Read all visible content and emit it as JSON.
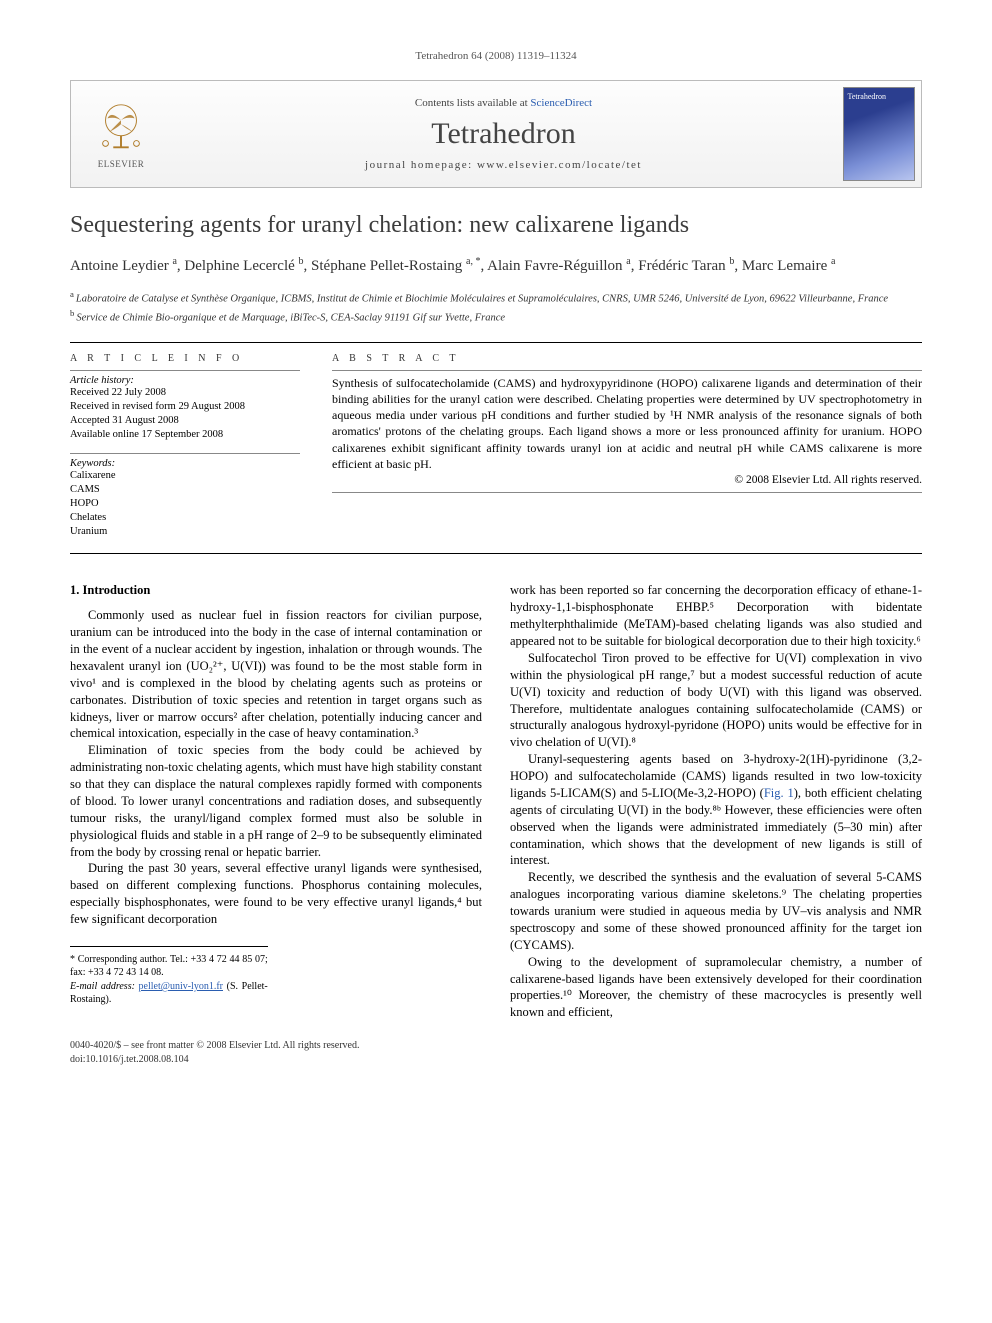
{
  "running_header": "Tetrahedron 64 (2008) 11319–11324",
  "masthead": {
    "contents_prefix": "Contents lists available at ",
    "contents_link": "ScienceDirect",
    "journal_name": "Tetrahedron",
    "homepage_prefix": "journal homepage: ",
    "homepage_url": "www.elsevier.com/locate/tet",
    "publisher": "ELSEVIER"
  },
  "title": "Sequestering agents for uranyl chelation: new calixarene ligands",
  "authors_html": "Antoine Leydier <sup>a</sup>, Delphine Lecerclé <sup>b</sup>, Stéphane Pellet-Rostaing <sup>a, *</sup>, Alain Favre-Réguillon <sup>a</sup>, Frédéric Taran <sup>b</sup>, Marc Lemaire <sup>a</sup>",
  "affiliations": {
    "a": "Laboratoire de Catalyse et Synthèse Organique, ICBMS, Institut de Chimie et Biochimie Moléculaires et Supramoléculaires, CNRS, UMR 5246, Université de Lyon, 69622 Villeurbanne, France",
    "b": "Service de Chimie Bio-organique et de Marquage, iBiTec-S, CEA-Saclay 91191 Gif sur Yvette, France"
  },
  "article_info_heading": "A R T I C L E   I N F O",
  "abstract_heading": "A B S T R A C T",
  "history": {
    "label": "Article history:",
    "received": "Received 22 July 2008",
    "revised": "Received in revised form 29 August 2008",
    "accepted": "Accepted 31 August 2008",
    "online": "Available online 17 September 2008"
  },
  "keywords": {
    "label": "Keywords:",
    "items": [
      "Calixarene",
      "CAMS",
      "HOPO",
      "Chelates",
      "Uranium"
    ]
  },
  "abstract": "Synthesis of sulfocatecholamide (CAMS) and hydroxypyridinone (HOPO) calixarene ligands and determination of their binding abilities for the uranyl cation were described. Chelating properties were determined by UV spectrophotometry in aqueous media under various pH conditions and further studied by ¹H NMR analysis of the resonance signals of both aromatics' protons of the chelating groups. Each ligand shows a more or less pronounced affinity for uranium. HOPO calixarenes exhibit significant affinity towards uranyl ion at acidic and neutral pH while CAMS calixarene is more efficient at basic pH.",
  "copyright": "© 2008 Elsevier Ltd. All rights reserved.",
  "section1": {
    "heading": "1. Introduction",
    "p1": "Commonly used as nuclear fuel in fission reactors for civilian purpose, uranium can be introduced into the body in the case of internal contamination or in the event of a nuclear accident by ingestion, inhalation or through wounds. The hexavalent uranyl ion (UO₂²⁺, U(VI)) was found to be the most stable form in vivo¹ and is complexed in the blood by chelating agents such as proteins or carbonates. Distribution of toxic species and retention in target organs such as kidneys, liver or marrow occurs² after chelation, potentially inducing cancer and chemical intoxication, especially in the case of heavy contamination.³",
    "p2": "Elimination of toxic species from the body could be achieved by administrating non-toxic chelating agents, which must have high stability constant so that they can displace the natural complexes rapidly formed with components of blood. To lower uranyl concentrations and radiation doses, and subsequently tumour risks, the uranyl/ligand complex formed must also be soluble in physiological fluids and stable in a pH range of 2–9 to be subsequently eliminated from the body by crossing renal or hepatic barrier.",
    "p3": "During the past 30 years, several effective uranyl ligands were synthesised, based on different complexing functions. Phosphorus containing molecules, especially bisphosphonates, were found to be very effective uranyl ligands,⁴ but few significant decorporation",
    "p4": "work has been reported so far concerning the decorporation efficacy of ethane-1-hydroxy-1,1-bisphosphonate EHBP.⁵ Decorporation with bidentate methylterphthalimide (MeTAM)-based chelating ligands was also studied and appeared not to be suitable for biological decorporation due to their high toxicity.⁶",
    "p5": "Sulfocatechol Tiron proved to be effective for U(VI) complexation in vivo within the physiological pH range,⁷ but a modest successful reduction of acute U(VI) toxicity and reduction of body U(VI) with this ligand was observed. Therefore, multidentate analogues containing sulfocatecholamide (CAMS) or structurally analogous hydroxyl-pyridone (HOPO) units would be effective for in vivo chelation of U(VI).⁸",
    "p6_pre": "Uranyl-sequestering agents based on 3-hydroxy-2(1H)-pyridinone (3,2-HOPO) and sulfocatecholamide (CAMS) ligands resulted in two low-toxicity ligands 5-LICAM(S) and 5-LIO(Me-3,2-HOPO) (",
    "p6_fig": "Fig. 1",
    "p6_post": "), both efficient chelating agents of circulating U(VI) in the body.⁸ᵇ However, these efficiencies were often observed when the ligands were administrated immediately (5–30 min) after contamination, which shows that the development of new ligands is still of interest.",
    "p7": "Recently, we described the synthesis and the evaluation of several 5-CAMS analogues incorporating various diamine skeletons.⁹ The chelating properties towards uranium were studied in aqueous media by UV–vis analysis and NMR spectroscopy and some of these showed pronounced affinity for the target ion (CYCAMS).",
    "p8": "Owing to the development of supramolecular chemistry, a number of calixarene-based ligands have been extensively developed for their coordination properties.¹⁰ Moreover, the chemistry of these macrocycles is presently well known and efficient,"
  },
  "footnote": {
    "corr": "* Corresponding author. Tel.: +33 4 72 44 85 07; fax: +33 4 72 43 14 08.",
    "email_label": "E-mail address: ",
    "email": "pellet@univ-lyon1.fr",
    "email_who": " (S. Pellet-Rostaing)."
  },
  "footer": {
    "line1": "0040-4020/$ – see front matter © 2008 Elsevier Ltd. All rights reserved.",
    "line2": "doi:10.1016/j.tet.2008.08.104"
  },
  "colors": {
    "link": "#2a5db0",
    "text": "#000000",
    "muted": "#555555",
    "rule": "#000000"
  }
}
